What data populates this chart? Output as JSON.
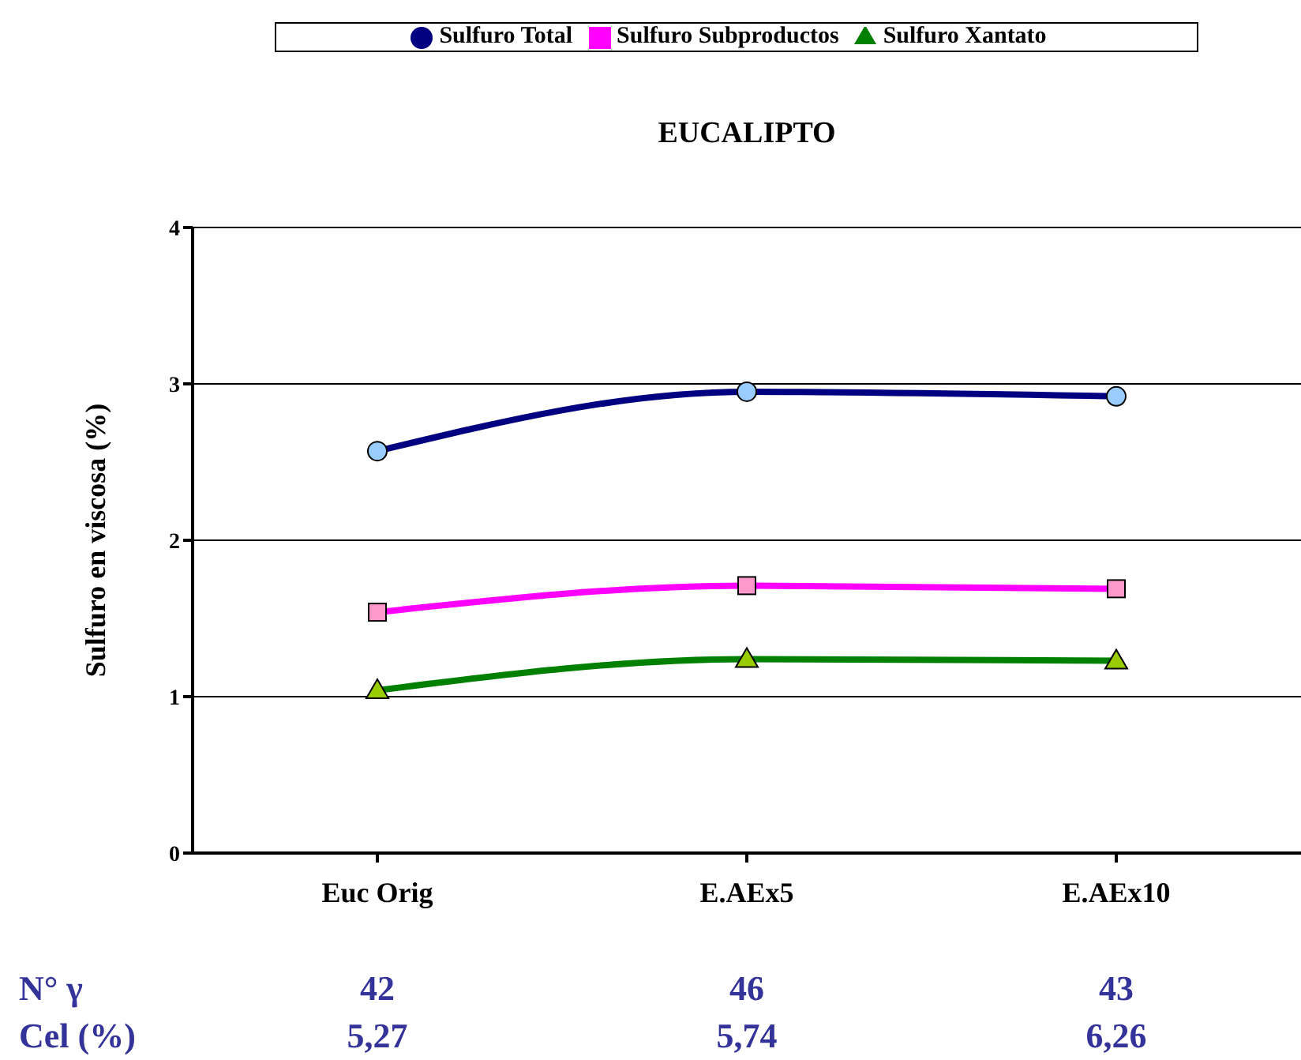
{
  "chart_data": {
    "type": "line",
    "title": "EUCALIPTO",
    "ylabel": "Sulfuro en viscosa (%)",
    "categories": [
      "Euc Orig",
      "E.AEx5",
      "E.AEx10"
    ],
    "series": [
      {
        "name": "Sulfuro Total",
        "color": "#000080",
        "marker": "circle",
        "values": [
          2.57,
          2.95,
          2.92
        ]
      },
      {
        "name": "Sulfuro Subproductos",
        "color": "#ff00ff",
        "marker": "square",
        "values": [
          1.54,
          1.71,
          1.69
        ]
      },
      {
        "name": "Sulfuro Xantato",
        "color": "#008000",
        "marker": "triangle",
        "values": [
          1.04,
          1.24,
          1.23
        ]
      }
    ],
    "ylim": [
      0,
      4
    ],
    "yticks": [
      0,
      1,
      2,
      3,
      4
    ],
    "grid": "y",
    "legend": "top",
    "annotations": [
      "N° γ",
      "42",
      "46",
      "43",
      "Cel (%)",
      "5,27",
      "5,74",
      "6,26"
    ]
  }
}
